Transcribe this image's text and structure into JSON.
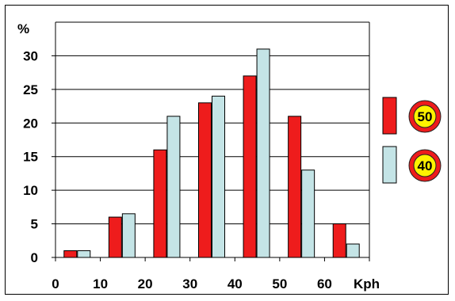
{
  "chart_data": {
    "type": "bar",
    "ylabel": "%",
    "xlabel": "Kph",
    "ylim": [
      0,
      35
    ],
    "yticks": [
      0,
      5,
      10,
      15,
      20,
      25,
      30
    ],
    "xlim": [
      0,
      70
    ],
    "xticks": [
      0,
      10,
      20,
      30,
      40,
      50,
      60
    ],
    "grid": true,
    "legend_position": "right",
    "categories": [
      "0-10",
      "10-20",
      "20-30",
      "30-40",
      "40-50",
      "50-60",
      "60-70"
    ],
    "series": [
      {
        "name": "50",
        "color": "#ee1c1c",
        "values": [
          1,
          6,
          16,
          23,
          27,
          21,
          5
        ]
      },
      {
        "name": "40",
        "color": "#c4e4e6",
        "values": [
          1,
          6.5,
          21,
          24,
          31,
          13,
          2
        ]
      }
    ]
  },
  "legend": [
    {
      "label": "50",
      "swatch": "#ee1c1c",
      "icon": "speed-limit-sign-icon"
    },
    {
      "label": "40",
      "swatch": "#c4e4e6",
      "icon": "speed-limit-sign-icon"
    }
  ]
}
